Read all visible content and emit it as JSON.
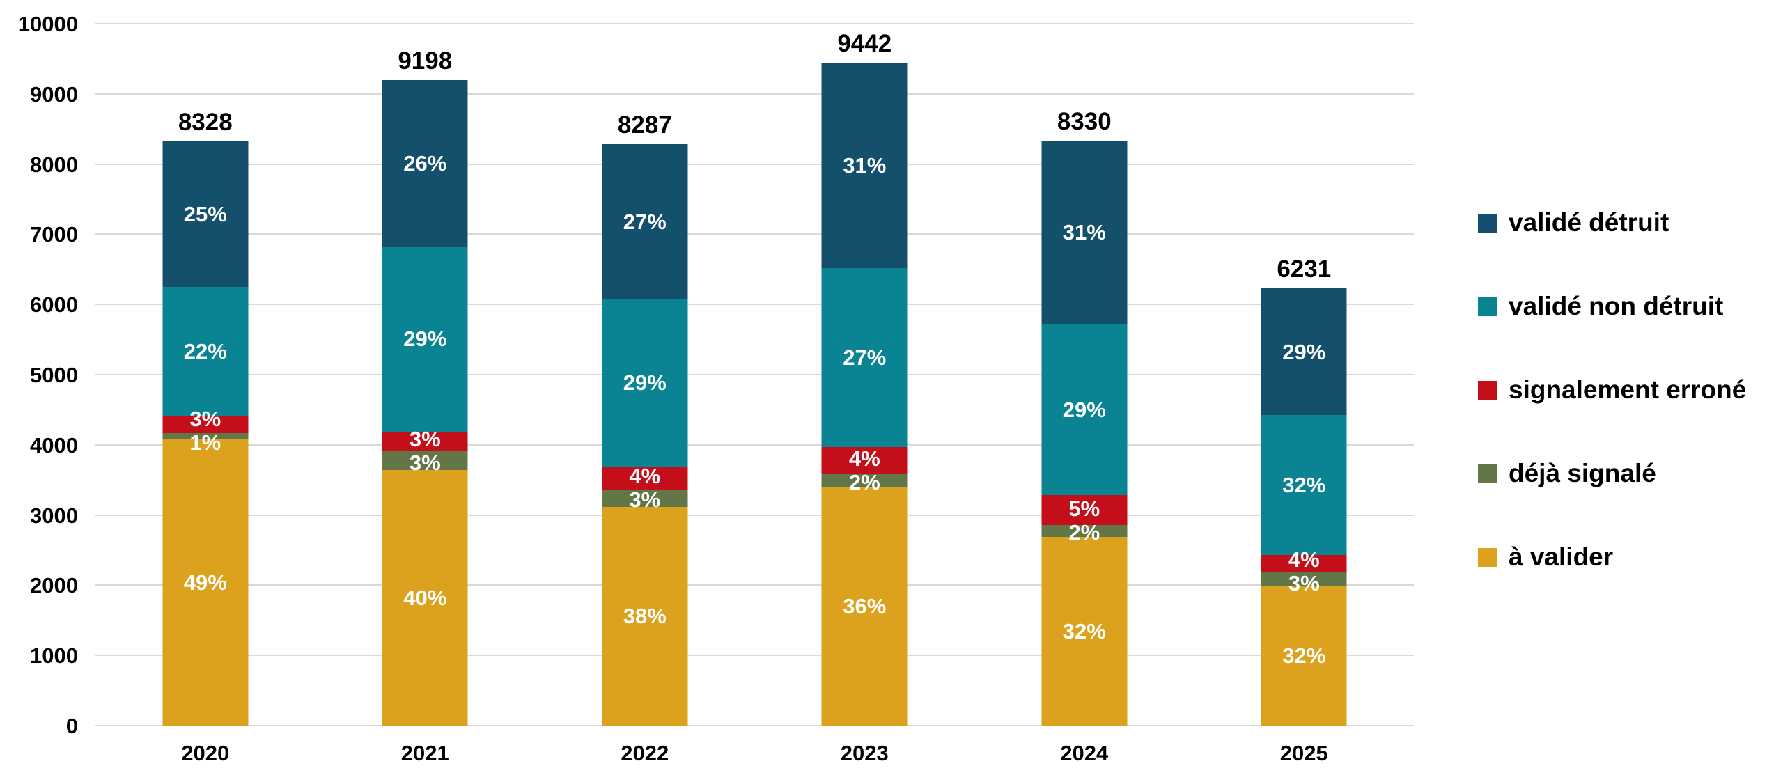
{
  "chart_data": {
    "type": "bar",
    "stacked": true,
    "categories": [
      "2020",
      "2021",
      "2022",
      "2023",
      "2024",
      "2025"
    ],
    "totals": [
      8328,
      9198,
      8287,
      9442,
      8330,
      6231
    ],
    "series": [
      {
        "name": "à valider",
        "color": "#DCA21D",
        "values_pct": [
          49,
          40,
          38,
          36,
          32,
          32
        ]
      },
      {
        "name": "déjà signalé",
        "color": "#627647",
        "values_pct": [
          1,
          3,
          3,
          2,
          2,
          3
        ]
      },
      {
        "name": "signalement erroné",
        "color": "#C40E19",
        "values_pct": [
          3,
          3,
          4,
          4,
          5,
          4
        ]
      },
      {
        "name": "validé non détruit",
        "color": "#0A8492",
        "values_pct": [
          22,
          29,
          29,
          27,
          29,
          32
        ]
      },
      {
        "name": "validé détruit",
        "color": "#14506B",
        "values_pct": [
          25,
          26,
          27,
          31,
          31,
          29
        ]
      }
    ],
    "value_suffix": "%",
    "y_axis": {
      "min": 0,
      "max": 10000,
      "tick_step": 1000,
      "ticks": [
        0,
        1000,
        2000,
        3000,
        4000,
        5000,
        6000,
        7000,
        8000,
        9000,
        10000
      ]
    },
    "grid": true,
    "legend": {
      "position": "right",
      "items": [
        "validé détruit",
        "validé non détruit",
        "signalement erroné",
        "déjà signalé",
        "à valider"
      ]
    }
  },
  "colors": {
    "background": "#FFFFFF",
    "gridline": "#D9D9D9",
    "axis_text": "#000000",
    "segment_label_text": "#FFFFFF"
  }
}
